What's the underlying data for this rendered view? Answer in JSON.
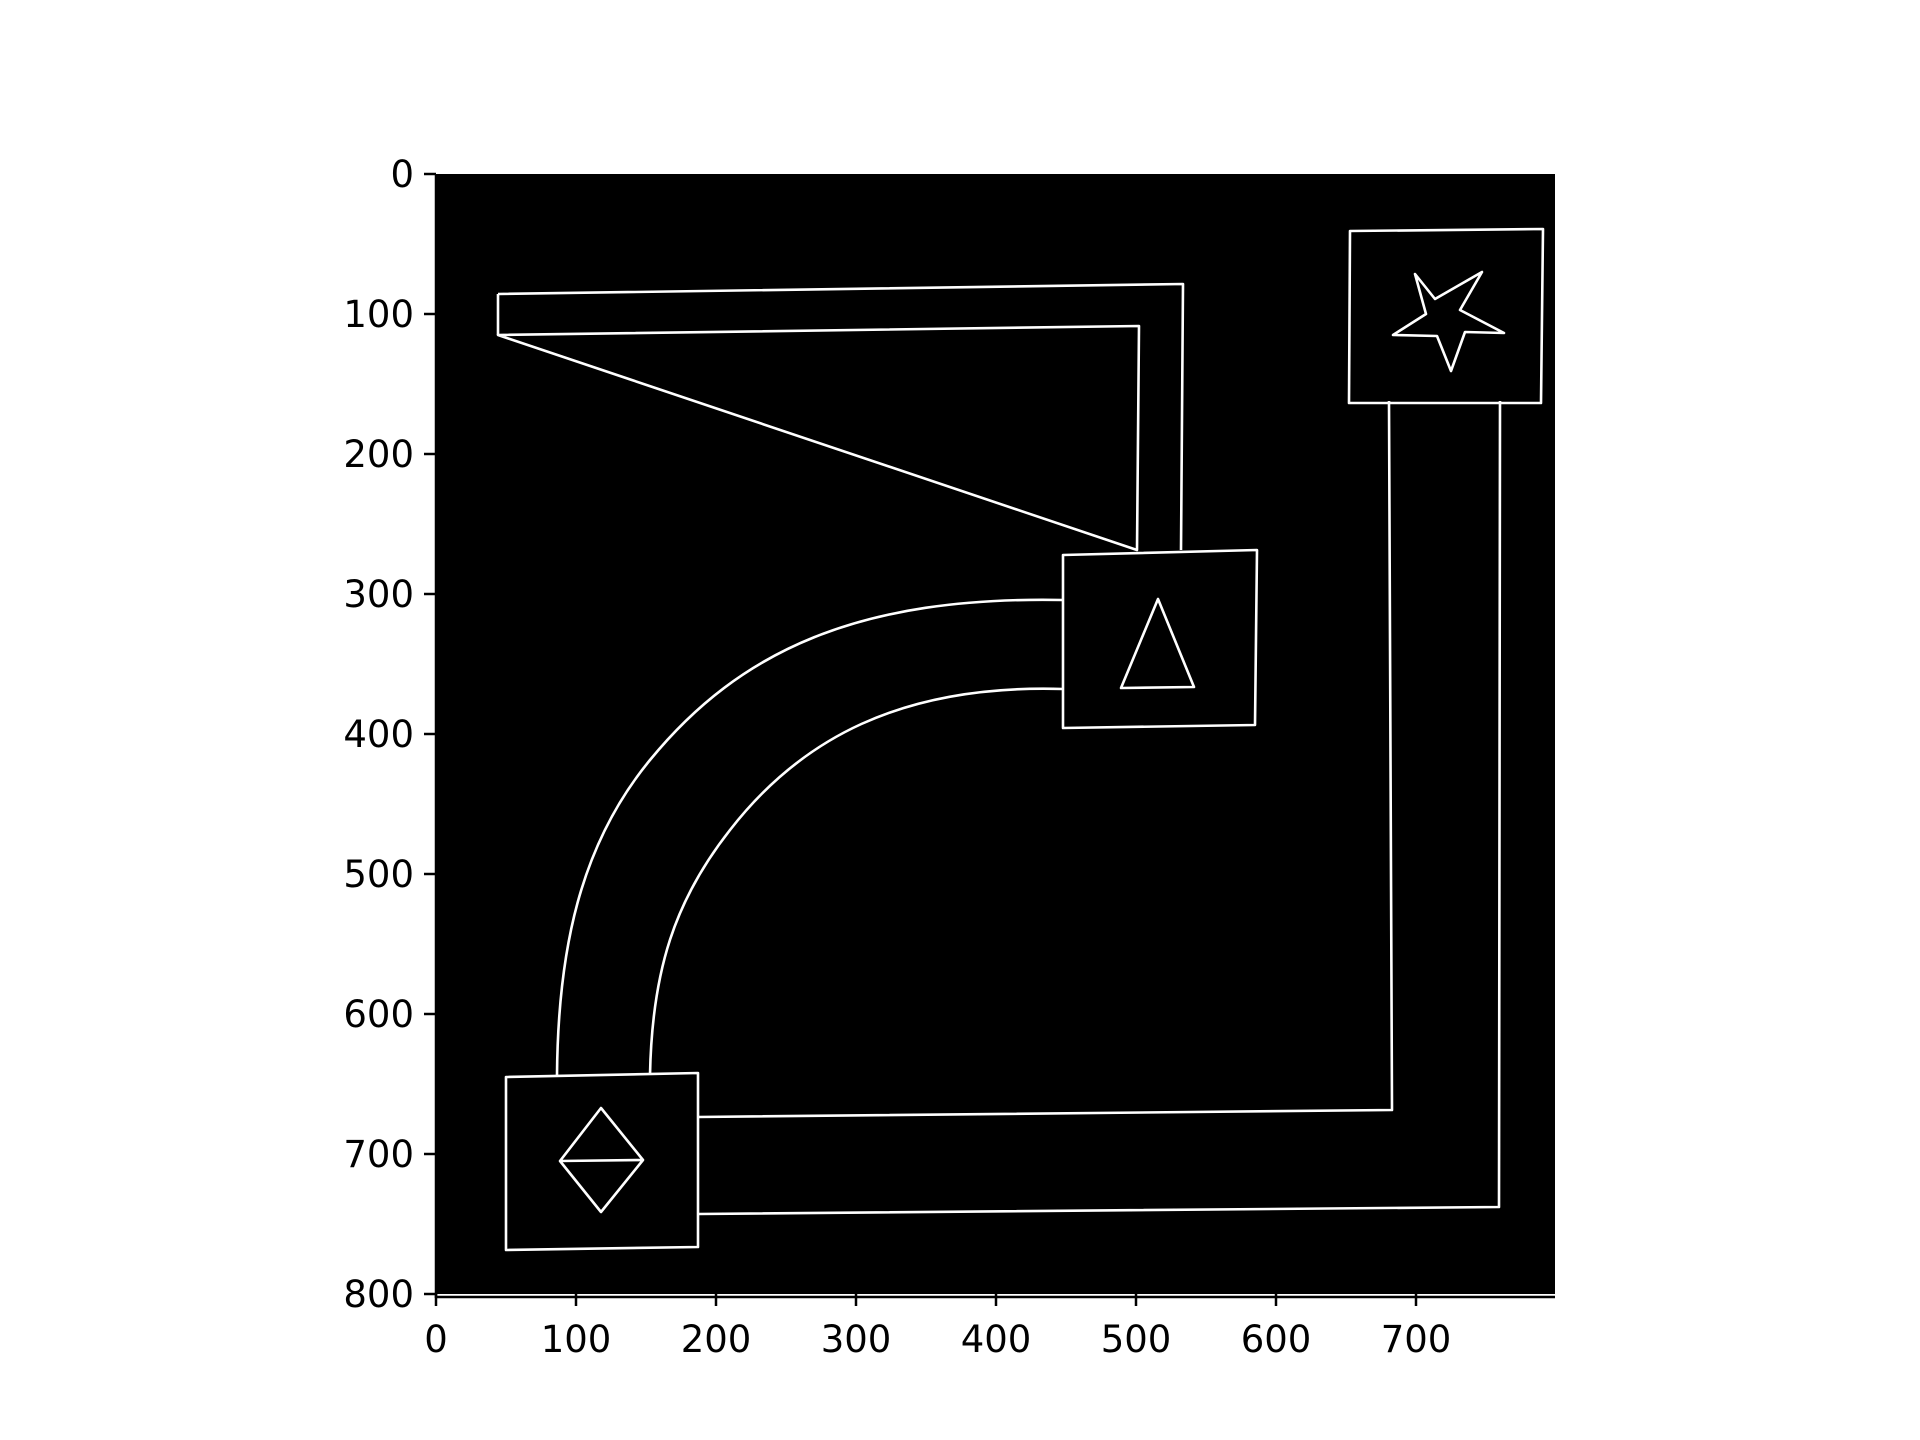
{
  "image_axes": {
    "x_range": [
      0,
      800
    ],
    "y_range": [
      0,
      800
    ],
    "y_inverted": true,
    "x_ticks": [
      "0",
      "100",
      "200",
      "300",
      "400",
      "500",
      "600",
      "700"
    ],
    "y_ticks": [
      "0",
      "100",
      "200",
      "300",
      "400",
      "500",
      "600",
      "700",
      "800"
    ]
  },
  "colors": {
    "background": "#000000",
    "stroke": "#ffffff",
    "page": "#ffffff",
    "axis": "#000000"
  },
  "nodes": [
    {
      "id": "star-node",
      "icon": "star-icon"
    },
    {
      "id": "triangle-node",
      "icon": "triangle-icon"
    },
    {
      "id": "diamond-node",
      "icon": "diamond-icon"
    }
  ],
  "connectors": [
    {
      "id": "top-l-pipe",
      "from": "open-end",
      "to": "triangle-node",
      "shape": "l-bend"
    },
    {
      "id": "curved-pipe",
      "from": "triangle-node",
      "to": "diamond-node",
      "shape": "arc"
    },
    {
      "id": "bottom-l-pipe",
      "from": "diamond-node",
      "to": "star-node",
      "shape": "l-bend"
    }
  ]
}
